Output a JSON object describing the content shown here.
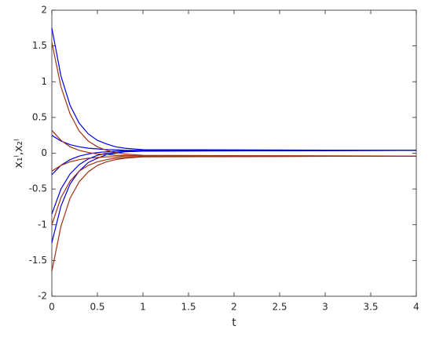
{
  "chart_data": {
    "type": "line",
    "xlabel": "t",
    "ylabel": "x₁ˡ,x₂ˡ",
    "x": [
      0,
      0.1,
      0.2,
      0.3,
      0.4,
      0.5,
      0.6,
      0.7,
      0.8,
      1,
      4
    ],
    "series": [
      {
        "color": "#0000e0",
        "values": [
          1.75,
          1.08,
          0.67,
          0.42,
          0.27,
          0.18,
          0.13,
          0.09,
          0.07,
          0.05,
          0.04
        ]
      },
      {
        "color": "#0000e0",
        "values": [
          0.25,
          0.17,
          0.12,
          0.09,
          0.07,
          0.06,
          0.05,
          0.05,
          0.04,
          0.04,
          0.04
        ]
      },
      {
        "color": "#0000e0",
        "values": [
          -0.3,
          -0.17,
          -0.09,
          -0.04,
          -0.01,
          0.01,
          0.02,
          0.03,
          0.03,
          0.04,
          0.04
        ]
      },
      {
        "color": "#0000e0",
        "values": [
          -0.85,
          -0.5,
          -0.29,
          -0.16,
          -0.08,
          -0.03,
          0,
          0.01,
          0.02,
          0.03,
          0.04
        ]
      },
      {
        "color": "#0000e0",
        "values": [
          -1.25,
          -0.74,
          -0.43,
          -0.25,
          -0.13,
          -0.07,
          -0.02,
          0,
          0.02,
          0.03,
          0.04
        ]
      },
      {
        "color": "#a03010",
        "values": [
          1.55,
          0.93,
          0.55,
          0.31,
          0.17,
          0.09,
          0.04,
          0.01,
          -0.01,
          -0.03,
          -0.04
        ]
      },
      {
        "color": "#a03010",
        "values": [
          0.32,
          0.18,
          0.09,
          0.04,
          0.01,
          -0.01,
          -0.02,
          -0.03,
          -0.03,
          -0.04,
          -0.04
        ]
      },
      {
        "color": "#a03010",
        "values": [
          -0.25,
          -0.17,
          -0.12,
          -0.09,
          -0.07,
          -0.06,
          -0.05,
          -0.05,
          -0.04,
          -0.04,
          -0.04
        ]
      },
      {
        "color": "#a03010",
        "values": [
          -1,
          -0.62,
          -0.39,
          -0.25,
          -0.17,
          -0.12,
          -0.09,
          -0.07,
          -0.06,
          -0.05,
          -0.04
        ]
      },
      {
        "color": "#a03010",
        "values": [
          -1.65,
          -1.02,
          -0.63,
          -0.4,
          -0.26,
          -0.17,
          -0.12,
          -0.09,
          -0.07,
          -0.05,
          -0.04
        ]
      }
    ],
    "xlim": [
      0,
      4
    ],
    "xticks": [
      0,
      0.5,
      1,
      1.5,
      2,
      2.5,
      3,
      3.5,
      4
    ],
    "ylim": [
      -2,
      2
    ],
    "yticks": [
      -2,
      -1.5,
      -1,
      -0.5,
      0,
      0.5,
      1,
      1.5,
      2
    ],
    "grid": false
  }
}
